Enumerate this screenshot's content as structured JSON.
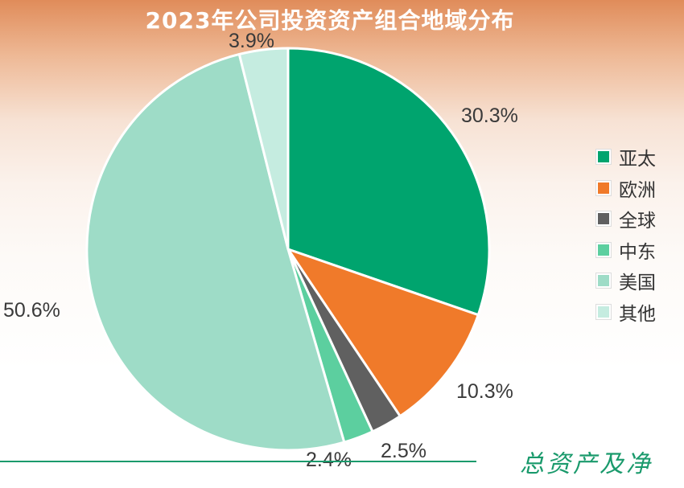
{
  "chart_data": {
    "type": "pie",
    "title": "2023年公司投资资产组合地域分布",
    "categories": [
      "亚太",
      "欧洲",
      "全球",
      "中东",
      "美国",
      "其他"
    ],
    "values": [
      30.3,
      10.3,
      2.5,
      2.4,
      50.6,
      3.9
    ],
    "labels": [
      "30.3%",
      "10.3%",
      "2.5%",
      "2.4%",
      "50.6%",
      "3.9%"
    ],
    "colors": [
      "#00a46e",
      "#f07a2a",
      "#606060",
      "#5ccf9f",
      "#9edcc7",
      "#c5ece0"
    ],
    "legend_position": "right",
    "start": "12 o'clock",
    "direction": "clockwise"
  },
  "footer": {
    "text": "总资产及净"
  }
}
